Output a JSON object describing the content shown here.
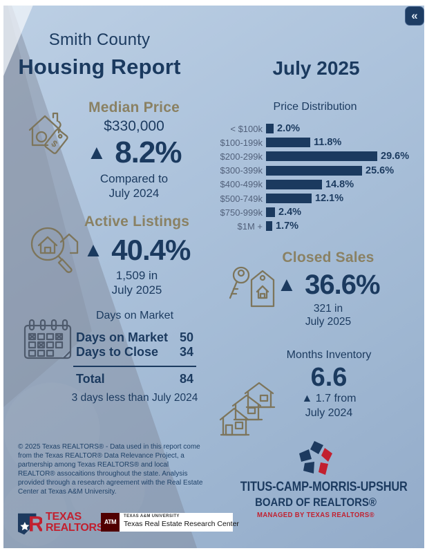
{
  "page": {
    "collapse_icon": "«"
  },
  "header": {
    "county": "Smith County",
    "title": "Housing Report",
    "month": "July 2025"
  },
  "median_price": {
    "title": "Median Price",
    "value": "$330,000",
    "arrow": "▲",
    "change": "8.2%",
    "compare_line1": "Compared to",
    "compare_line2": "July 2024"
  },
  "chart_data": {
    "type": "bar",
    "orientation": "horizontal",
    "title": "Price Distribution",
    "categories": [
      "< $100k",
      "$100-199k",
      "$200-299k",
      "$300-399k",
      "$400-499k",
      "$500-749k",
      "$750-999k",
      "$1M +"
    ],
    "values": [
      2.0,
      11.8,
      29.6,
      25.6,
      14.8,
      12.1,
      2.4,
      1.7
    ],
    "value_labels": [
      "2.0%",
      "11.8%",
      "29.6%",
      "25.6%",
      "14.8%",
      "12.1%",
      "2.4%",
      "1.7%"
    ],
    "xlim": [
      0,
      30
    ],
    "grid": false,
    "bar_color": "#1b3a5f",
    "legend": "none"
  },
  "active_listings": {
    "title": "Active Listings",
    "arrow": "▲",
    "change": "40.4%",
    "detail_line1": "1,509 in",
    "detail_line2": "July 2025"
  },
  "closed_sales": {
    "title": "Closed Sales",
    "arrow": "▲",
    "change": "36.6%",
    "detail_line1": "321 in",
    "detail_line2": "July 2025"
  },
  "days_on_market": {
    "title": "Days on Market",
    "rows": [
      {
        "label": "Days on Market",
        "value": "50"
      },
      {
        "label": "Days to Close",
        "value": "34"
      }
    ],
    "total_label": "Total",
    "total_value": "84",
    "note": "3 days less than July 2024"
  },
  "months_inventory": {
    "title": "Months Inventory",
    "value": "6.6",
    "change_line1": "▲ 1.7 from",
    "change_line2": "July 2024"
  },
  "footer": {
    "disclaimer": "© 2025 Texas REALTORS® - Data used in this report come from the Texas REALTOR® Data Relevance Project, a partnership among Texas REALTORS® and local REALTOR® assocaitions throughout the state. Analysis provided through a research agreement with the Real Estate Center at Texas A&M University."
  },
  "logos": {
    "texas_realtors": {
      "line1": "TEXAS",
      "line2": "REALTORS®"
    },
    "tamu": {
      "monogram": "ATM",
      "line1": "TEXAS A&M UNIVERSITY",
      "line2": "Texas Real Estate Research Center"
    },
    "board": {
      "line1": "TITUS-CAMP-MORRIS-UPSHUR",
      "line2": "BOARD OF REALTORS®",
      "line3": "MANAGED BY TEXAS REALTORS®"
    }
  },
  "colors": {
    "navy": "#1b3a5f",
    "olive": "#8a8163",
    "red": "#c2202f",
    "maroon": "#500000",
    "chart_label": "#52617b",
    "bar": "#1b3a5f"
  }
}
